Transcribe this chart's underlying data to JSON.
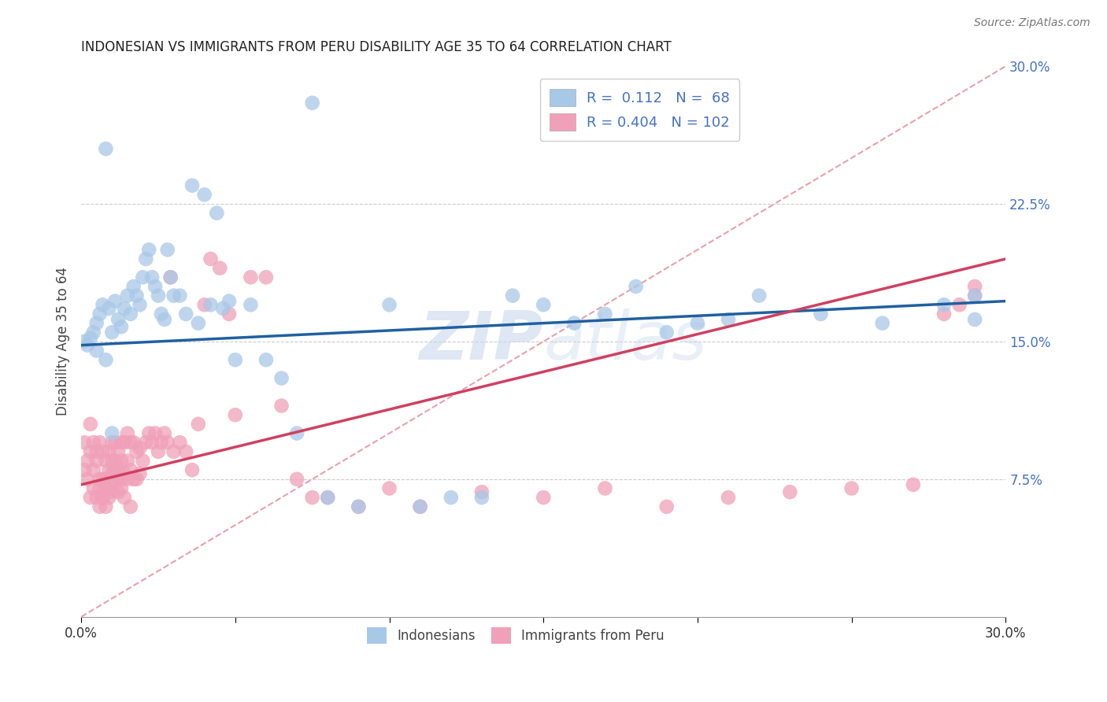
{
  "title": "INDONESIAN VS IMMIGRANTS FROM PERU DISABILITY AGE 35 TO 64 CORRELATION CHART",
  "source": "Source: ZipAtlas.com",
  "ylabel": "Disability Age 35 to 64",
  "xlim": [
    0.0,
    0.3
  ],
  "ylim": [
    0.0,
    0.3
  ],
  "ytick_labels_right": [
    "30.0%",
    "22.5%",
    "15.0%",
    "7.5%"
  ],
  "yticks_right": [
    0.3,
    0.225,
    0.15,
    0.075
  ],
  "blue_color": "#a8c8e8",
  "pink_color": "#f0a0b8",
  "blue_line_color": "#2060a0",
  "pink_line_color": "#d04060",
  "dashed_line_color": "#e8a0b0",
  "watermark_color": "#c8d8ec",
  "blue_line_y0": 0.148,
  "blue_line_y1": 0.172,
  "pink_line_y0": 0.072,
  "pink_line_y1": 0.195,
  "indo_x": [
    0.001,
    0.002,
    0.003,
    0.004,
    0.005,
    0.005,
    0.006,
    0.007,
    0.008,
    0.009,
    0.01,
    0.011,
    0.012,
    0.013,
    0.014,
    0.015,
    0.016,
    0.017,
    0.018,
    0.019,
    0.02,
    0.021,
    0.022,
    0.023,
    0.024,
    0.025,
    0.026,
    0.027,
    0.028,
    0.029,
    0.03,
    0.032,
    0.034,
    0.036,
    0.038,
    0.04,
    0.042,
    0.044,
    0.046,
    0.048,
    0.05,
    0.055,
    0.06,
    0.065,
    0.07,
    0.075,
    0.08,
    0.09,
    0.1,
    0.11,
    0.12,
    0.13,
    0.14,
    0.15,
    0.16,
    0.17,
    0.18,
    0.19,
    0.2,
    0.21,
    0.22,
    0.24,
    0.26,
    0.28,
    0.29,
    0.29,
    0.008,
    0.01
  ],
  "indo_y": [
    0.15,
    0.148,
    0.152,
    0.155,
    0.145,
    0.16,
    0.165,
    0.17,
    0.14,
    0.168,
    0.155,
    0.172,
    0.162,
    0.158,
    0.168,
    0.175,
    0.165,
    0.18,
    0.175,
    0.17,
    0.185,
    0.195,
    0.2,
    0.185,
    0.18,
    0.175,
    0.165,
    0.162,
    0.2,
    0.185,
    0.175,
    0.175,
    0.165,
    0.235,
    0.16,
    0.23,
    0.17,
    0.22,
    0.168,
    0.172,
    0.14,
    0.17,
    0.14,
    0.13,
    0.1,
    0.28,
    0.065,
    0.06,
    0.17,
    0.06,
    0.065,
    0.065,
    0.175,
    0.17,
    0.16,
    0.165,
    0.18,
    0.155,
    0.16,
    0.162,
    0.175,
    0.165,
    0.16,
    0.17,
    0.175,
    0.162,
    0.255,
    0.1
  ],
  "peru_x": [
    0.001,
    0.001,
    0.002,
    0.002,
    0.003,
    0.003,
    0.004,
    0.004,
    0.005,
    0.005,
    0.005,
    0.006,
    0.006,
    0.006,
    0.007,
    0.007,
    0.007,
    0.008,
    0.008,
    0.008,
    0.009,
    0.009,
    0.009,
    0.01,
    0.01,
    0.01,
    0.01,
    0.011,
    0.011,
    0.011,
    0.012,
    0.012,
    0.012,
    0.013,
    0.013,
    0.013,
    0.014,
    0.014,
    0.015,
    0.015,
    0.015,
    0.016,
    0.016,
    0.017,
    0.017,
    0.018,
    0.018,
    0.019,
    0.019,
    0.02,
    0.021,
    0.022,
    0.023,
    0.024,
    0.025,
    0.026,
    0.027,
    0.028,
    0.029,
    0.03,
    0.032,
    0.034,
    0.036,
    0.038,
    0.04,
    0.042,
    0.045,
    0.048,
    0.05,
    0.055,
    0.06,
    0.065,
    0.07,
    0.075,
    0.08,
    0.09,
    0.1,
    0.11,
    0.13,
    0.15,
    0.17,
    0.19,
    0.21,
    0.23,
    0.25,
    0.27,
    0.28,
    0.285,
    0.29,
    0.29,
    0.003,
    0.004,
    0.006,
    0.007,
    0.008,
    0.009,
    0.01,
    0.011,
    0.012,
    0.013,
    0.014,
    0.016
  ],
  "peru_y": [
    0.095,
    0.08,
    0.085,
    0.075,
    0.09,
    0.065,
    0.095,
    0.07,
    0.09,
    0.065,
    0.085,
    0.095,
    0.075,
    0.07,
    0.09,
    0.075,
    0.065,
    0.085,
    0.075,
    0.07,
    0.09,
    0.08,
    0.065,
    0.095,
    0.085,
    0.075,
    0.068,
    0.095,
    0.085,
    0.078,
    0.09,
    0.08,
    0.068,
    0.095,
    0.085,
    0.075,
    0.095,
    0.078,
    0.1,
    0.085,
    0.075,
    0.095,
    0.08,
    0.095,
    0.075,
    0.09,
    0.075,
    0.092,
    0.078,
    0.085,
    0.095,
    0.1,
    0.095,
    0.1,
    0.09,
    0.095,
    0.1,
    0.095,
    0.185,
    0.09,
    0.095,
    0.09,
    0.08,
    0.105,
    0.17,
    0.195,
    0.19,
    0.165,
    0.11,
    0.185,
    0.185,
    0.115,
    0.075,
    0.065,
    0.065,
    0.06,
    0.07,
    0.06,
    0.068,
    0.065,
    0.07,
    0.06,
    0.065,
    0.068,
    0.07,
    0.072,
    0.165,
    0.17,
    0.175,
    0.18,
    0.105,
    0.08,
    0.06,
    0.065,
    0.06,
    0.07,
    0.078,
    0.08,
    0.075,
    0.07,
    0.065,
    0.06
  ]
}
